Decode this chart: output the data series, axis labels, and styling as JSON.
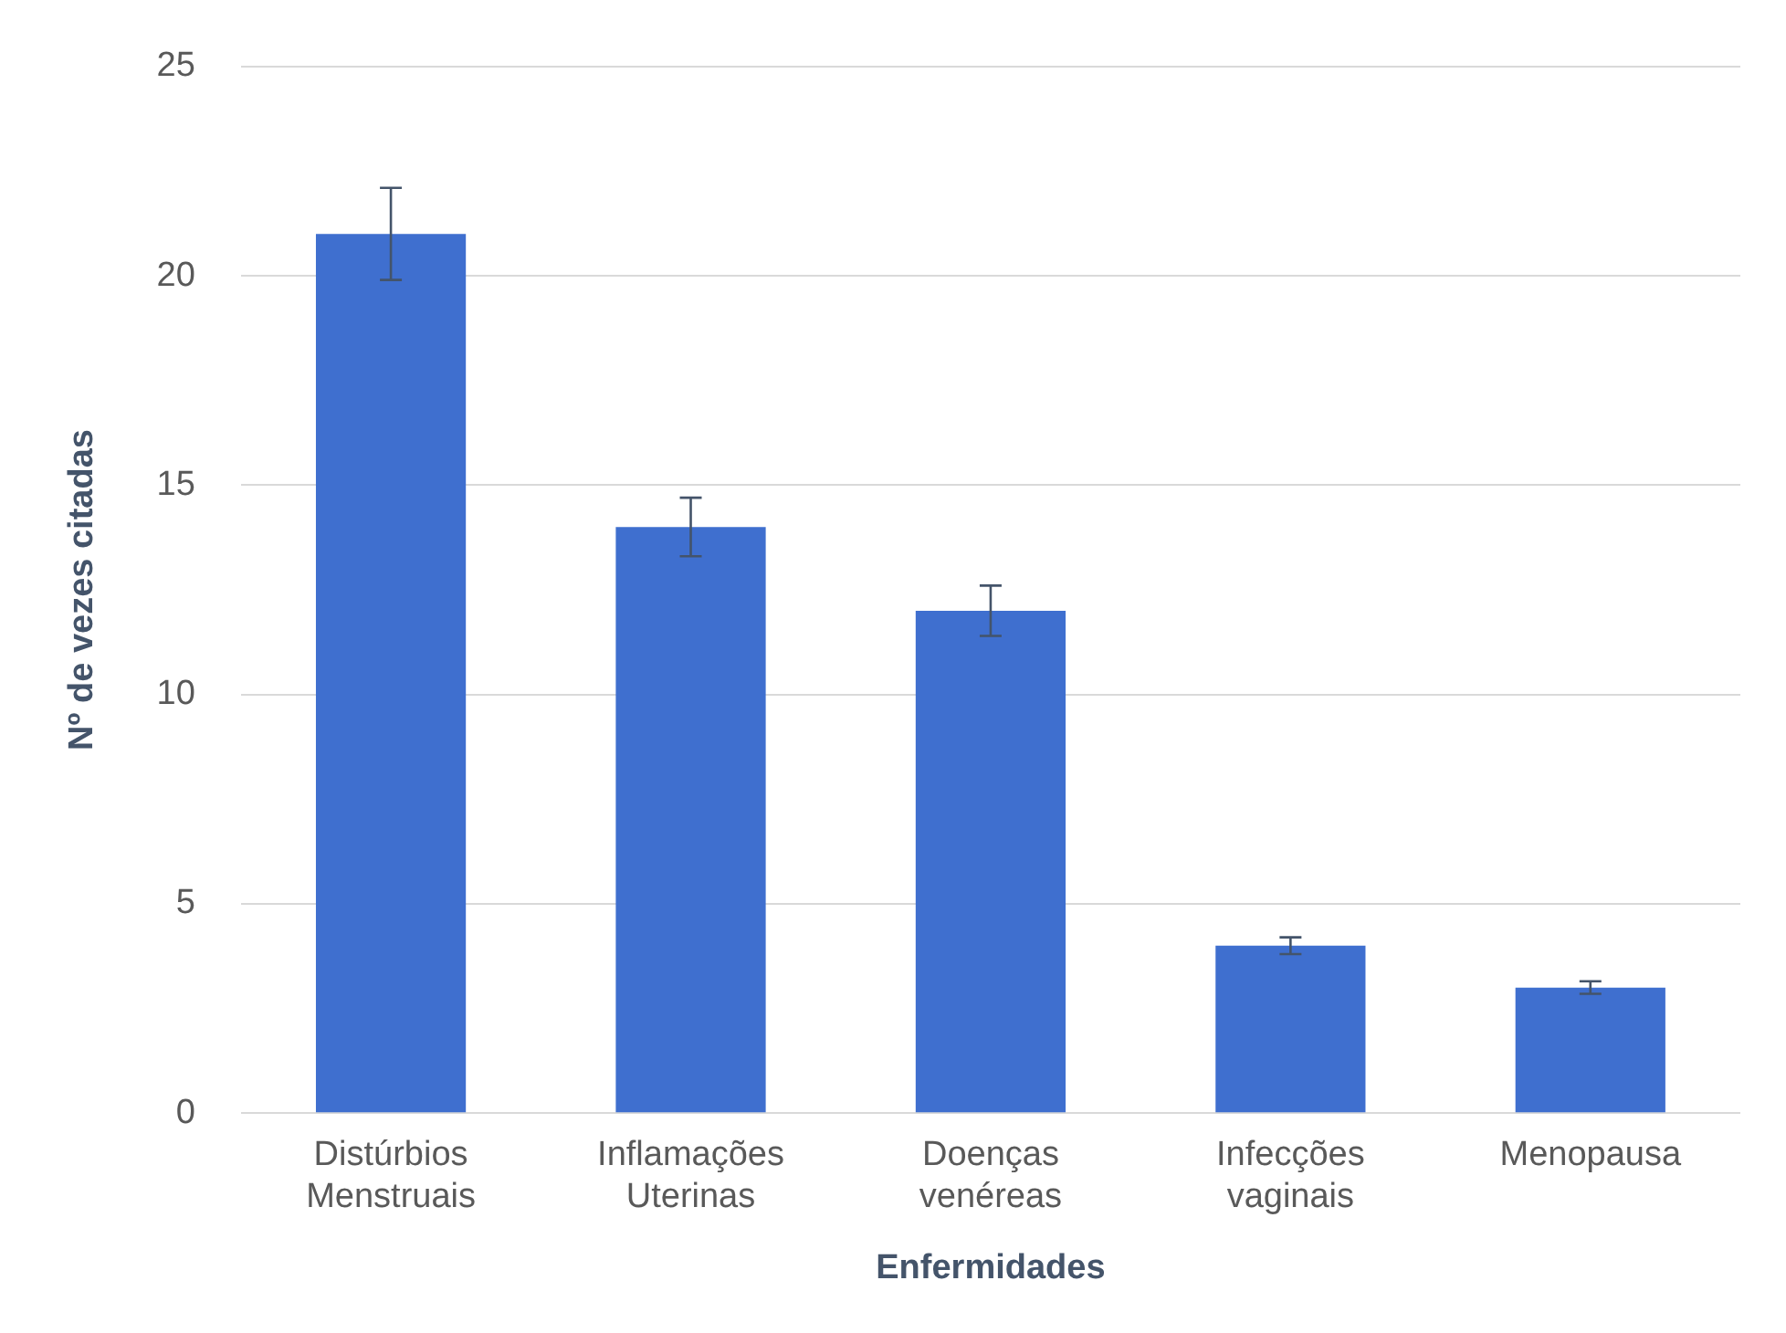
{
  "chart_data": {
    "type": "bar",
    "xlabel": "Enfermidades",
    "ylabel": "Nº de vezes citadas",
    "categories": [
      "Distúrbios Menstruais",
      "Inflamações Uterinas",
      "Doenças venéreas",
      "Infecções vaginais",
      "Menopausa"
    ],
    "values": [
      21,
      14,
      12,
      4,
      3
    ],
    "errors": [
      1.1,
      0.7,
      0.6,
      0.2,
      0.15
    ],
    "color": "#3f6fcf",
    "ylim": [
      0,
      25
    ],
    "yticks": [
      0,
      5,
      10,
      15,
      20,
      25
    ],
    "grid": "y"
  }
}
